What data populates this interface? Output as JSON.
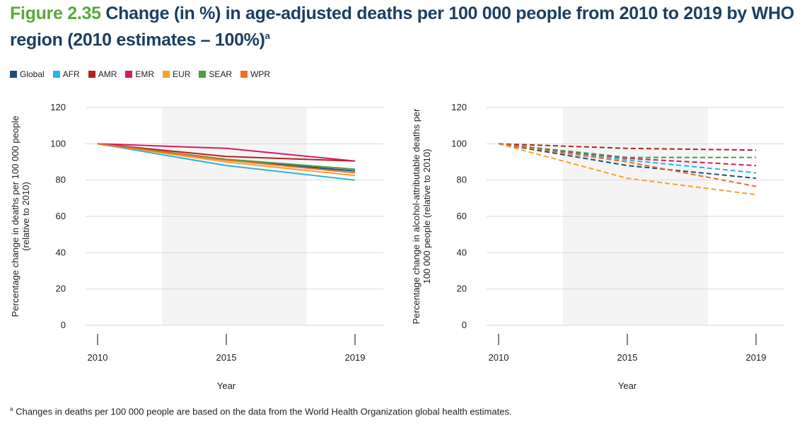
{
  "title": {
    "prefix": "Figure 2.35",
    "main": "Change (in %) in age-adjusted deaths per 100 000 people from 2010 to 2019 by WHO region (2010 estimates – 100%)",
    "superscript": "a"
  },
  "legend": [
    {
      "name": "Global",
      "color": "#1f4e79"
    },
    {
      "name": "AFR",
      "color": "#2ab4e3"
    },
    {
      "name": "AMR",
      "color": "#b22222"
    },
    {
      "name": "EMR",
      "color": "#d81b60"
    },
    {
      "name": "EUR",
      "color": "#f5a22d"
    },
    {
      "name": "SEAR",
      "color": "#43a047"
    },
    {
      "name": "WPR",
      "color": "#ef6c2a"
    }
  ],
  "footnote": {
    "marker": "a",
    "text": "Changes in deaths per 100 000 people are based on the data from the World Health Organization global health estimates."
  },
  "chart_data": [
    {
      "type": "line",
      "line_style": "solid",
      "x": [
        "2010",
        "2015",
        "2019"
      ],
      "ylabel_lines": [
        "Percentage change in deaths per 100 000 people",
        "(relative to 2010)"
      ],
      "xlabel": "Year",
      "ylim": [
        0,
        120
      ],
      "yticks": [
        "0",
        "20",
        "40",
        "60",
        "80",
        "100",
        "120"
      ],
      "shaded_band": [
        "2012.5",
        "2017.5"
      ],
      "series": [
        {
          "name": "Global",
          "color": "#1f4e79",
          "values": [
            100,
            91,
            85
          ]
        },
        {
          "name": "AFR",
          "color": "#2ab4e3",
          "values": [
            100,
            88,
            80
          ]
        },
        {
          "name": "AMR",
          "color": "#b22222",
          "values": [
            100,
            93,
            90.5
          ]
        },
        {
          "name": "EMR",
          "color": "#d81b60",
          "values": [
            100,
            97.5,
            90.5
          ]
        },
        {
          "name": "EUR",
          "color": "#f5a22d",
          "values": [
            100,
            90,
            82.5
          ]
        },
        {
          "name": "SEAR",
          "color": "#43a047",
          "values": [
            100,
            91.5,
            86
          ]
        },
        {
          "name": "WPR",
          "color": "#ef6c2a",
          "values": [
            100,
            91,
            84
          ]
        }
      ]
    },
    {
      "type": "line",
      "line_style": "dashed",
      "x": [
        "2010",
        "2015",
        "2019"
      ],
      "ylabel_lines": [
        "Percentage change in alcohol-attributable deaths per",
        "100 000 people (relative to 2010)"
      ],
      "xlabel": "Year",
      "ylim": [
        0,
        120
      ],
      "yticks": [
        "0",
        "20",
        "40",
        "60",
        "80",
        "100",
        "120"
      ],
      "shaded_band": [
        "2012.5",
        "2017.5"
      ],
      "series": [
        {
          "name": "Global",
          "color": "#1f4e79",
          "values": [
            100,
            88,
            81
          ]
        },
        {
          "name": "AFR",
          "color": "#2ab4e3",
          "values": [
            100,
            91,
            84
          ]
        },
        {
          "name": "AMR",
          "color": "#b22222",
          "values": [
            100,
            97.5,
            96.5
          ]
        },
        {
          "name": "EMR",
          "color": "#d81b60",
          "values": [
            100,
            92,
            88
          ]
        },
        {
          "name": "EUR",
          "color": "#f5a22d",
          "values": [
            100,
            81,
            72
          ]
        },
        {
          "name": "SEAR",
          "color": "#43a047",
          "values": [
            100,
            92.5,
            92.5
          ]
        },
        {
          "name": "WPR",
          "color": "#ef6c2a",
          "values": [
            100,
            90,
            76.5
          ]
        }
      ]
    }
  ]
}
